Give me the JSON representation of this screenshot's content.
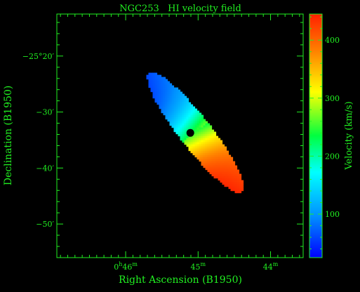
{
  "chart_data": {
    "type": "heatmap",
    "title": "NGC253   HI velocity field",
    "xlabel": "Right Ascension (B1950)",
    "ylabel": "Declination (B1950)",
    "colorbar_label": "Velocity (km/s)",
    "x_ticks": [
      {
        "value_min": 46,
        "label_main": "0",
        "label_h": "h",
        "label_num": "46",
        "label_m": "m"
      },
      {
        "value_min": 45,
        "label_main": "45",
        "label_m": "m"
      },
      {
        "value_min": 44,
        "label_main": "44",
        "label_m": "m"
      }
    ],
    "y_ticks": [
      {
        "value_arcmin": -20,
        "label": "−25°20′"
      },
      {
        "value_arcmin": -30,
        "label": "−30′"
      },
      {
        "value_arcmin": -40,
        "label": "−40′"
      },
      {
        "value_arcmin": -50,
        "label": "−50′"
      }
    ],
    "xlim_min": [
      46.95,
      43.55
    ],
    "ylim_arcmin": [
      -56,
      -12.5
    ],
    "colorbar_ticks": [
      100,
      200,
      300,
      400
    ],
    "colorbar_range": [
      25,
      445
    ],
    "velocity_field": {
      "center_ra_min": 45.04,
      "center_dec_arcmin": -33.6,
      "position_angle_deg": 52,
      "major_diameter_arcmin": 27,
      "minor_diameter_arcmin": 5.6,
      "systemic_velocity": 250,
      "rotation_amplitude": 190,
      "velocity_min": 30,
      "velocity_max": 440,
      "approaching_side": "north-east",
      "receding_side": "south-west"
    },
    "colormap": [
      "#0000ff",
      "#0090ff",
      "#00ffff",
      "#00ff40",
      "#ffff00",
      "#ff8000",
      "#ff2000"
    ],
    "colors": {
      "background": "#000000",
      "axes": "#21f021",
      "hole": "#000000"
    }
  }
}
